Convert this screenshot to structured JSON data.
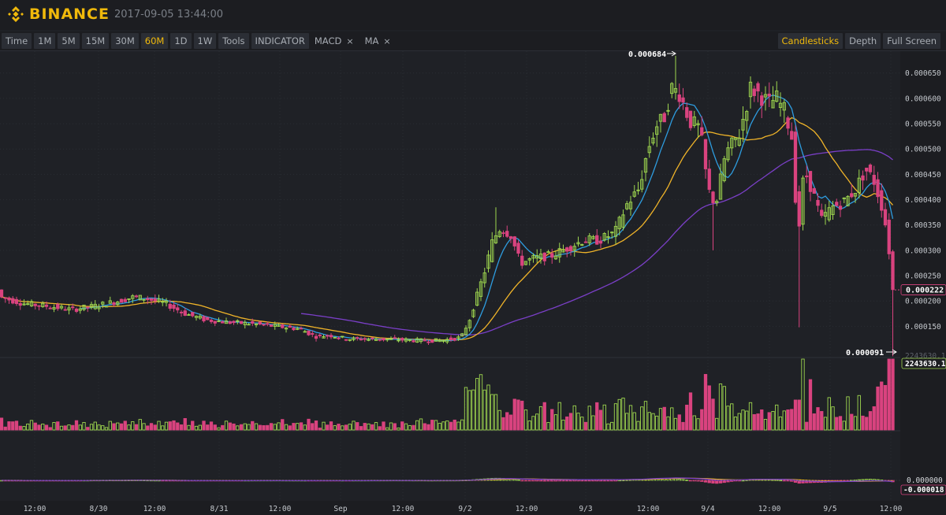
{
  "header": {
    "brand": "BINANCE",
    "timestamp": "2017-09-05 13:44:00",
    "brand_color": "#f0b90b"
  },
  "toolbar": {
    "intervals": [
      "Time",
      "1M",
      "5M",
      "15M",
      "30M",
      "60M",
      "1D",
      "1W"
    ],
    "active_interval": "60M",
    "tools_label": "Tools",
    "indicator_label": "INDICATOR",
    "indicators": [
      "MACD",
      "MA"
    ],
    "close_glyph": "×",
    "right": [
      {
        "label": "Candlesticks",
        "active": true
      },
      {
        "label": "Depth",
        "active": false
      },
      {
        "label": "Full Screen",
        "active": false
      }
    ]
  },
  "chart": {
    "price_ticks": [
      "0.000650",
      "0.000600",
      "0.000550",
      "0.000500",
      "0.000450",
      "0.000400",
      "0.000350",
      "0.000300",
      "0.000250",
      "0.000200",
      "0.000150"
    ],
    "price_tick_values": [
      0.00065,
      0.0006,
      0.00055,
      0.0005,
      0.00045,
      0.0004,
      0.00035,
      0.0003,
      0.00025,
      0.0002,
      0.00015
    ],
    "price_range": [
      9e-05,
      0.00069
    ],
    "high_label": "0.000684",
    "low_label": "0.000091",
    "current_price_label": "0.000222",
    "current_price": 0.000222,
    "volume_label": "2243630.10",
    "volume_label_faint": "2243630.10",
    "macd_ticks": [
      "0.000000",
      "-0.000018"
    ],
    "time_labels": [
      "12:00",
      "8/30",
      "12:00",
      "8/31",
      "12:00",
      "Sep",
      "12:00",
      "9/2",
      "12:00",
      "9/3",
      "12:00",
      "9/4",
      "12:00",
      "9/5",
      "12:00"
    ],
    "colors": {
      "up": "#9ed64f",
      "down": "#d9437f",
      "ma_fast": "#2e9de0",
      "ma_mid": "#f0b429",
      "ma_slow": "#7a3fc7",
      "macd_signal": "#f0b429",
      "macd_line": "#7a3fc7",
      "axis_bg": "#1c1d21"
    },
    "close_anchors": [
      [
        0,
        0.000208
      ],
      [
        30,
        0.000195
      ],
      [
        60,
        0.00019
      ],
      [
        90,
        0.000183
      ],
      [
        120,
        0.00019
      ],
      [
        150,
        0.0002
      ],
      [
        170,
        0.000208
      ],
      [
        185,
        0.000205
      ],
      [
        210,
        0.000195
      ],
      [
        235,
        0.000175
      ],
      [
        260,
        0.000163
      ],
      [
        290,
        0.000158
      ],
      [
        320,
        0.000155
      ],
      [
        350,
        0.00015
      ],
      [
        380,
        0.000145
      ],
      [
        400,
        0.00013
      ],
      [
        420,
        0.000132
      ],
      [
        440,
        0.000125
      ],
      [
        470,
        0.000125
      ],
      [
        500,
        0.000124
      ],
      [
        530,
        0.000122
      ],
      [
        560,
        0.000122
      ],
      [
        585,
        0.000128
      ],
      [
        596,
        0.000165
      ],
      [
        606,
        0.000215
      ],
      [
        616,
        0.000265
      ],
      [
        625,
        0.00032
      ],
      [
        635,
        0.000345
      ],
      [
        648,
        0.00033
      ],
      [
        660,
        0.000275
      ],
      [
        680,
        0.000285
      ],
      [
        700,
        0.00029
      ],
      [
        720,
        0.000305
      ],
      [
        740,
        0.00032
      ],
      [
        760,
        0.00032
      ],
      [
        780,
        0.000335
      ],
      [
        795,
        0.00039
      ],
      [
        810,
        0.00042
      ],
      [
        822,
        0.0005
      ],
      [
        832,
        0.000545
      ],
      [
        842,
        0.00056
      ],
      [
        852,
        0.00062
      ],
      [
        862,
        0.00061
      ],
      [
        875,
        0.000555
      ],
      [
        888,
        0.00054
      ],
      [
        898,
        0.00042
      ],
      [
        908,
        0.00039
      ],
      [
        920,
        0.00049
      ],
      [
        938,
        0.00053
      ],
      [
        952,
        0.00062
      ],
      [
        962,
        0.00061
      ],
      [
        975,
        0.00059
      ],
      [
        985,
        0.0006
      ],
      [
        995,
        0.000575
      ],
      [
        1005,
        0.00052
      ],
      [
        1012,
        0.00032
      ],
      [
        1020,
        0.00046
      ],
      [
        1030,
        0.00042
      ],
      [
        1042,
        0.00036
      ],
      [
        1055,
        0.000385
      ],
      [
        1070,
        0.000395
      ],
      [
        1085,
        0.00042
      ],
      [
        1098,
        0.00046
      ],
      [
        1108,
        0.00044
      ],
      [
        1118,
        0.00039
      ],
      [
        1126,
        0.00033
      ],
      [
        1132,
        0.000222
      ]
    ]
  }
}
